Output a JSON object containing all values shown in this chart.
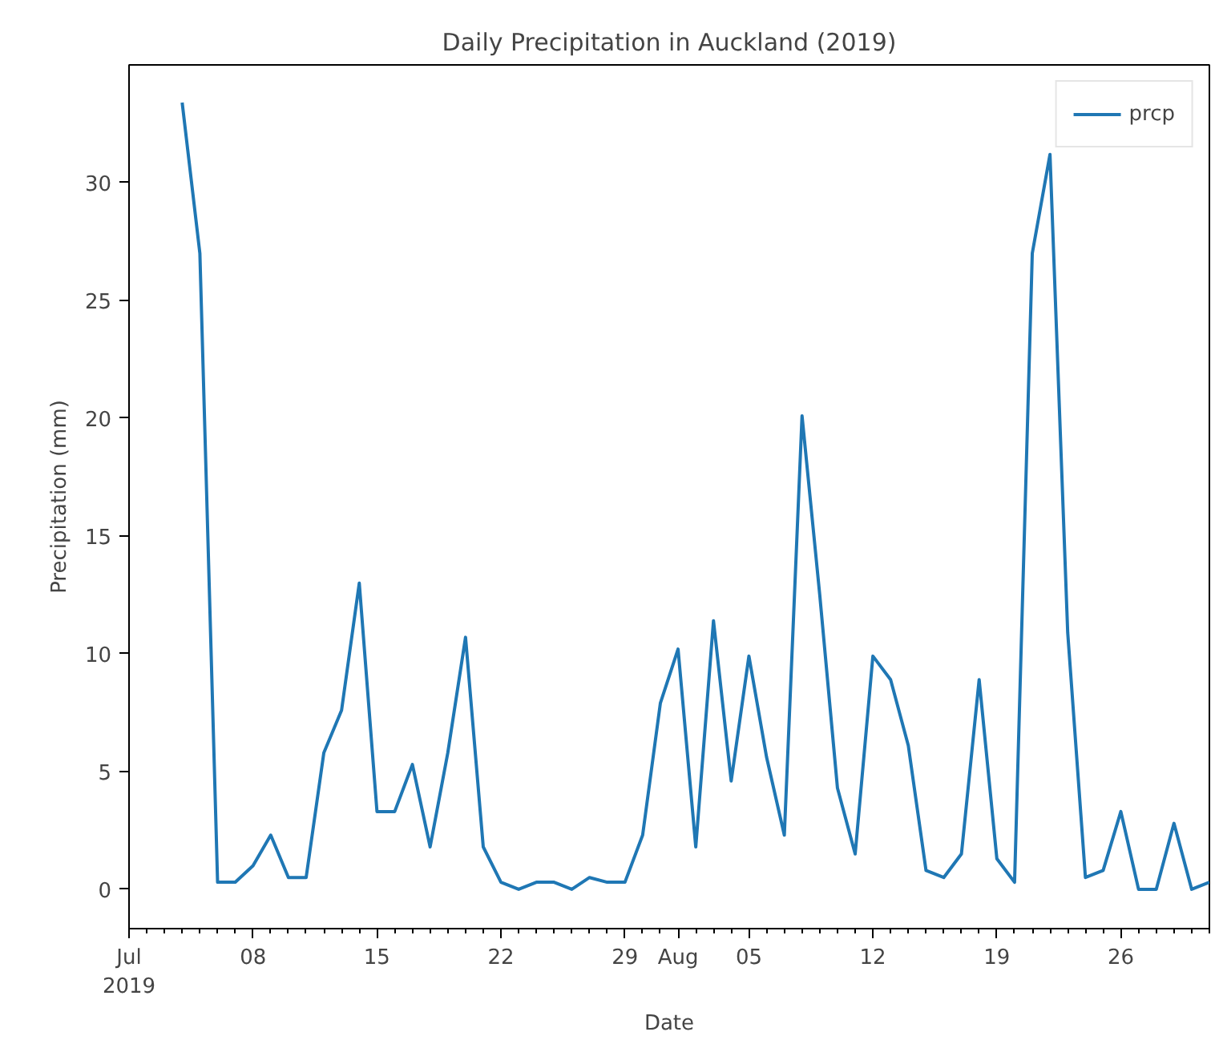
{
  "chart_data": {
    "type": "line",
    "title": "Daily Precipitation in Auckland (2019)",
    "xlabel": "Date",
    "ylabel": "Precipitation (mm)",
    "x": [
      "2019-07-04",
      "2019-07-05",
      "2019-07-06",
      "2019-07-07",
      "2019-07-08",
      "2019-07-09",
      "2019-07-10",
      "2019-07-11",
      "2019-07-12",
      "2019-07-13",
      "2019-07-14",
      "2019-07-15",
      "2019-07-16",
      "2019-07-17",
      "2019-07-18",
      "2019-07-19",
      "2019-07-20",
      "2019-07-21",
      "2019-07-22",
      "2019-07-23",
      "2019-07-24",
      "2019-07-25",
      "2019-07-26",
      "2019-07-27",
      "2019-07-28",
      "2019-07-29",
      "2019-07-30",
      "2019-07-31",
      "2019-08-01",
      "2019-08-02",
      "2019-08-03",
      "2019-08-04",
      "2019-08-05",
      "2019-08-06",
      "2019-08-07",
      "2019-08-08",
      "2019-08-09",
      "2019-08-10",
      "2019-08-11",
      "2019-08-12",
      "2019-08-13",
      "2019-08-14",
      "2019-08-15",
      "2019-08-16",
      "2019-08-17",
      "2019-08-18",
      "2019-08-19",
      "2019-08-20",
      "2019-08-21",
      "2019-08-22",
      "2019-08-23",
      "2019-08-24",
      "2019-08-25",
      "2019-08-26",
      "2019-08-27",
      "2019-08-28",
      "2019-08-29",
      "2019-08-30",
      "2019-08-31"
    ],
    "series": [
      {
        "name": "prcp",
        "color": "#1f77b4",
        "values": [
          33.4,
          27.0,
          0.3,
          0.3,
          1.0,
          2.3,
          0.5,
          0.5,
          5.8,
          7.6,
          13.0,
          3.3,
          3.3,
          5.3,
          1.8,
          5.8,
          10.7,
          1.8,
          0.3,
          0.0,
          0.3,
          0.3,
          0.0,
          0.5,
          0.3,
          0.3,
          2.3,
          7.9,
          10.2,
          1.8,
          11.4,
          4.6,
          9.9,
          5.6,
          2.3,
          20.1,
          12.5,
          4.3,
          1.5,
          9.9,
          8.9,
          6.1,
          0.8,
          0.5,
          1.5,
          8.9,
          1.3,
          0.3,
          27.0,
          31.2,
          10.9,
          0.5,
          0.8,
          3.3,
          0.0,
          0.0,
          2.8,
          0.0,
          0.3
        ]
      }
    ],
    "xlim": [
      "2019-07-01",
      "2019-08-31"
    ],
    "xticks": [
      {
        "value": "2019-07-01",
        "label": "Jul\n2019"
      },
      {
        "value": "2019-07-08",
        "label": "08"
      },
      {
        "value": "2019-07-15",
        "label": "15"
      },
      {
        "value": "2019-07-22",
        "label": "22"
      },
      {
        "value": "2019-07-29",
        "label": "29"
      },
      {
        "value": "2019-08-01",
        "label": "Aug"
      },
      {
        "value": "2019-08-05",
        "label": "05"
      },
      {
        "value": "2019-08-12",
        "label": "12"
      },
      {
        "value": "2019-08-19",
        "label": "19"
      },
      {
        "value": "2019-08-26",
        "label": "26"
      }
    ],
    "ylim": [
      -1.67,
      35.0
    ],
    "yticks": [
      0,
      5,
      10,
      15,
      20,
      25,
      30
    ],
    "grid": false,
    "legend": "top right",
    "marker": "none",
    "line_style": "solid"
  }
}
